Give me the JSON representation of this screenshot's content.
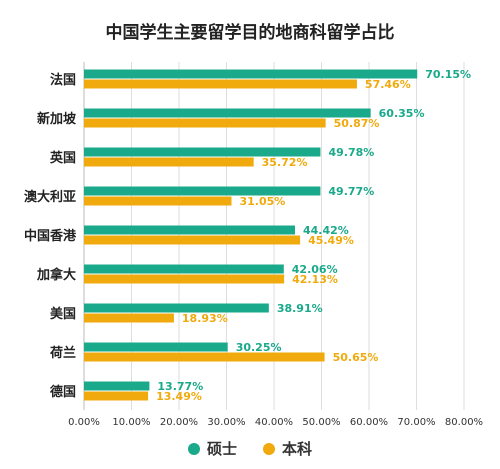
{
  "chart_data": {
    "type": "bar",
    "orientation": "horizontal",
    "title": "中国学生主要留学目的地商科留学占比",
    "categories": [
      "法国",
      "新加坡",
      "英国",
      "澳大利亚",
      "中国香港",
      "加拿大",
      "美国",
      "荷兰",
      "德国"
    ],
    "series": [
      {
        "name": "硕士",
        "color": "#1aa98a",
        "values": [
          70.15,
          60.35,
          49.78,
          49.77,
          44.42,
          42.06,
          38.91,
          30.25,
          13.77
        ],
        "labels": [
          "70.15%",
          "60.35%",
          "49.78%",
          "49.77%",
          "44.42%",
          "42.06%",
          "38.91%",
          "30.25%",
          "13.77%"
        ]
      },
      {
        "name": "本科",
        "color": "#f0aa0d",
        "values": [
          57.46,
          50.87,
          35.72,
          31.05,
          45.49,
          42.13,
          18.93,
          50.65,
          13.49
        ],
        "labels": [
          "57.46%",
          "50.87%",
          "35.72%",
          "31.05%",
          "45.49%",
          "42.13%",
          "18.93%",
          "50.65%",
          "13.49%"
        ]
      }
    ],
    "xlim": [
      0,
      80
    ],
    "xticks": [
      0,
      10,
      20,
      30,
      40,
      50,
      60,
      70,
      80
    ],
    "xtick_labels": [
      "0.00%",
      "10.00%",
      "20.00%",
      "30.00%",
      "40.00%",
      "50.00%",
      "60.00%",
      "70.00%",
      "80.00%"
    ],
    "grid": true,
    "legend_position": "bottom-center"
  }
}
